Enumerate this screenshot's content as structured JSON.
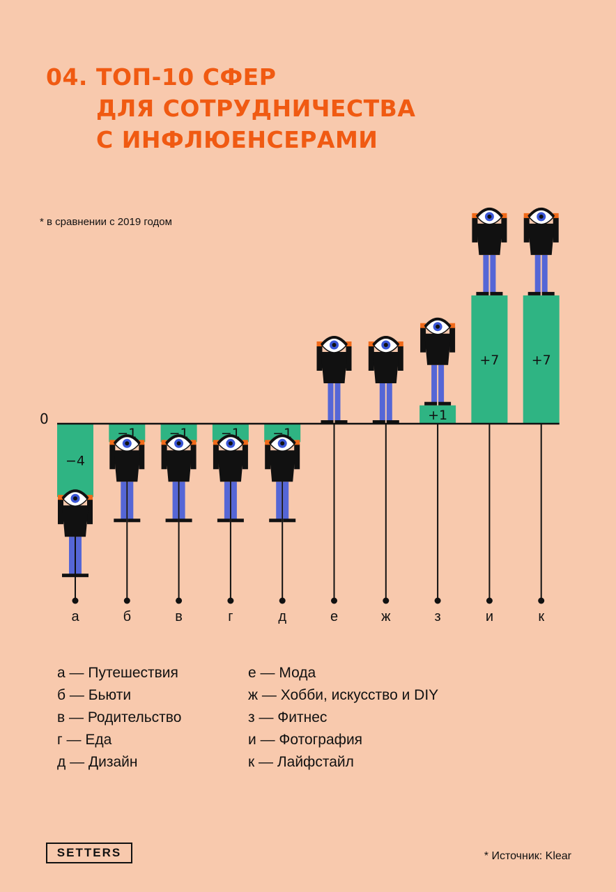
{
  "title_lines": [
    "04. ТОП-10 СФЕР",
    "ДЛЯ СОТРУДНИЧЕСТВА",
    "С ИНФЛЮЕНСЕРАМИ"
  ],
  "note": "* в сравнении с 2019 годом",
  "zero_label": "0",
  "colors": {
    "background": "#f8c9ad",
    "bar": "#2fb483",
    "title": "#f05a12",
    "jeans": "#5566d6"
  },
  "chart_data": {
    "type": "bar",
    "categories": [
      "а",
      "б",
      "в",
      "г",
      "д",
      "е",
      "ж",
      "з",
      "и",
      "к"
    ],
    "values": [
      -4,
      -1,
      -1,
      -1,
      -1,
      0,
      0,
      1,
      7,
      7
    ],
    "value_labels": [
      "−4",
      "−1",
      "−1",
      "−1",
      "−1",
      "",
      "",
      "+1",
      "+7",
      "+7"
    ],
    "ylim": [
      -4,
      7
    ]
  },
  "legend_left": [
    "а — Путешествия",
    "б — Бьюти",
    "в — Родительство",
    "г — Еда",
    "д — Дизайн"
  ],
  "legend_right": [
    "е — Мода",
    "ж — Хобби, искусство и DIY",
    "з — Фитнес",
    "и — Фотография",
    "к — Лайфстайл"
  ],
  "brand": "SETTERS",
  "source": "* Источник: Klear"
}
